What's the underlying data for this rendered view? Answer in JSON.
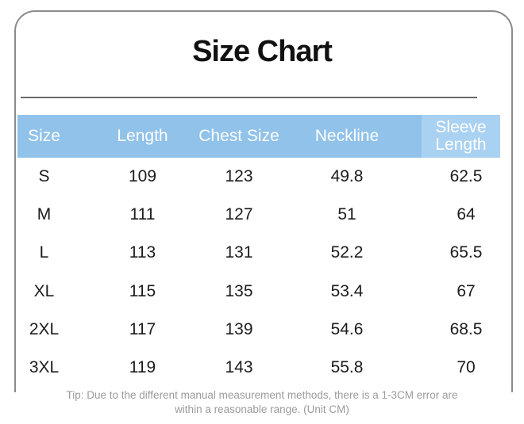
{
  "card": {
    "title": "Size Chart"
  },
  "colors": {
    "header_bg": "#90C2EA",
    "header_highlight": "#A9D1F1",
    "border_gray": "#8b8b8b",
    "divider_gray": "#6a6a6a",
    "tip_gray": "#9b9b9b"
  },
  "sleeve_header": {
    "line1": "Sleeve",
    "line2": "Length"
  },
  "footer": {
    "tip_line1": "Tip: Due to the different manual measurement methods, there is a 1-3CM error are",
    "tip_line2": "within a reasonable range. (Unit CM)"
  },
  "chart_data": {
    "type": "table",
    "title": "Size Chart",
    "unit": "CM",
    "columns": [
      "Size",
      "Length",
      "Chest Size",
      "Neckline",
      "Sleeve Length"
    ],
    "rows": [
      [
        "S",
        "109",
        "123",
        "49.8",
        "62.5"
      ],
      [
        "M",
        "111",
        "127",
        "51",
        "64"
      ],
      [
        "L",
        "113",
        "131",
        "52.2",
        "65.5"
      ],
      [
        "XL",
        "115",
        "135",
        "53.4",
        "67"
      ],
      [
        "2XL",
        "117",
        "139",
        "54.6",
        "68.5"
      ],
      [
        "3XL",
        "119",
        "143",
        "55.8",
        "70"
      ]
    ]
  }
}
